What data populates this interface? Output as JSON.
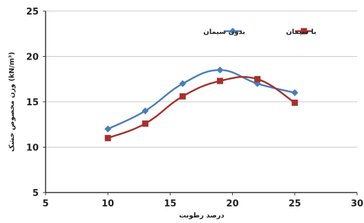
{
  "chart_data": {
    "type": "line",
    "xlabel": "درصد رطوبت",
    "ylabel": "وزن مخصوص خشک (kN/m³)",
    "xlim": [
      5,
      30
    ],
    "ylim": [
      5,
      25
    ],
    "xticks": [
      5,
      10,
      15,
      20,
      25,
      30
    ],
    "yticks": [
      5,
      10,
      15,
      20,
      25
    ],
    "grid": "horizontal",
    "legend_position": "top-right",
    "series": [
      {
        "name": "بدون سیمان",
        "color": "#4a7eb8",
        "marker": "diamond",
        "x": [
          10,
          13,
          16,
          19,
          22,
          25
        ],
        "y": [
          12,
          14,
          17,
          18.5,
          17,
          16
        ]
      },
      {
        "name": "با سیمان",
        "color": "#a5312c",
        "marker": "square",
        "x": [
          10,
          13,
          16,
          19,
          22,
          25
        ],
        "y": [
          11,
          12.6,
          15.6,
          17.3,
          17.5,
          14.9
        ]
      }
    ]
  }
}
